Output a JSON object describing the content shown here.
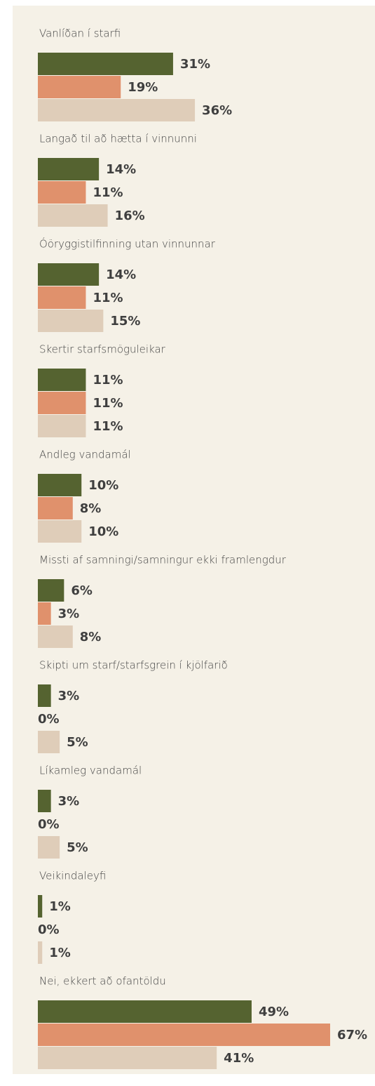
{
  "chart_data": {
    "type": "bar",
    "orientation": "horizontal",
    "categories": [
      "Vanlíðan í starfi",
      "Langað til að hætta í vinnunni",
      "Óöryggistilfinning utan vinnunnar",
      "Skertir starfsmöguleikar",
      "Andleg vandamál",
      "Missti af samningi/samningur ekki framlengdur",
      "Skipti um starf/starfsgrein í kjölfarið",
      "Líkamleg vandamál",
      "Veikindaleyfi",
      "Nei, ekkert að ofantöldu"
    ],
    "series": [
      {
        "color": "#556330",
        "values": [
          31,
          14,
          14,
          11,
          10,
          6,
          3,
          3,
          1,
          49
        ],
        "value_labels": [
          "31%",
          "14%",
          "14%",
          "11%",
          "10%",
          "6%",
          "3%",
          "3%",
          "1%",
          "49%"
        ]
      },
      {
        "color": "#e0916c",
        "values": [
          19,
          11,
          11,
          11,
          8,
          3,
          0,
          0,
          0,
          67
        ],
        "value_labels": [
          "19%",
          "11%",
          "11%",
          "11%",
          "8%",
          "3%",
          "0%",
          "0%",
          "0%",
          "67%"
        ]
      },
      {
        "color": "#dfcdb9",
        "values": [
          36,
          16,
          15,
          11,
          10,
          8,
          5,
          5,
          1,
          41
        ],
        "value_labels": [
          "36%",
          "16%",
          "15%",
          "11%",
          "10%",
          "8%",
          "5%",
          "5%",
          "1%",
          "41%"
        ]
      }
    ]
  }
}
